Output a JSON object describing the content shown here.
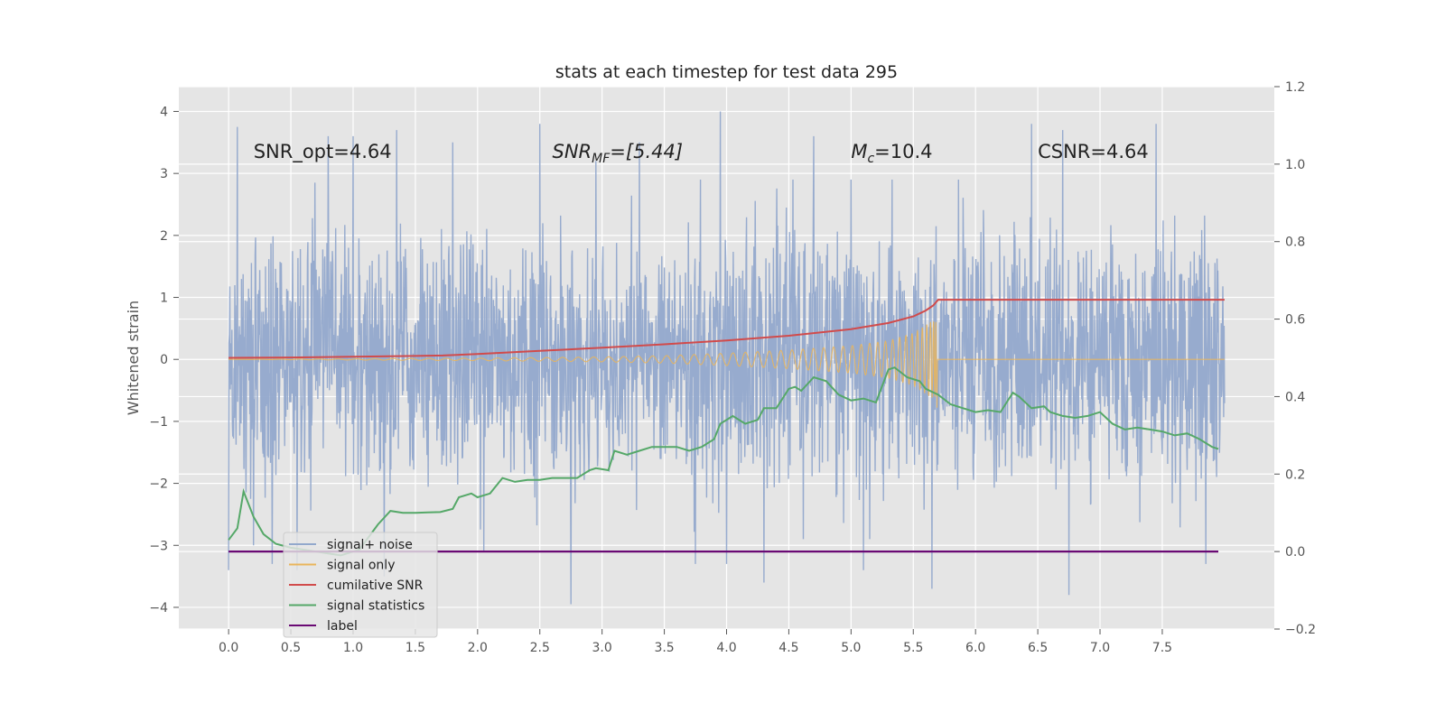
{
  "chart_data": {
    "type": "line",
    "title": "stats at each timestep for test data 295",
    "xlabel": "",
    "ylabel": "Whitened strain",
    "xlim": [
      -0.4,
      8.4
    ],
    "ylim": [
      -4.35,
      4.4
    ],
    "y2lim": [
      -0.2,
      1.2
    ],
    "x_ticks": [
      0.0,
      0.5,
      1.0,
      1.5,
      2.0,
      2.5,
      3.0,
      3.5,
      4.0,
      4.5,
      5.0,
      5.5,
      6.0,
      6.5,
      7.0,
      7.5
    ],
    "x_tick_labels": [
      "0.0",
      "0.5",
      "1.0",
      "1.5",
      "2.0",
      "2.5",
      "3.0",
      "3.5",
      "4.0",
      "4.5",
      "5.0",
      "5.5",
      "6.0",
      "6.5",
      "7.0",
      "7.5"
    ],
    "y_ticks": [
      -4,
      -3,
      -2,
      -1,
      0,
      1,
      2,
      3,
      4
    ],
    "y_tick_labels": [
      "−4",
      "−3",
      "−2",
      "−1",
      "0",
      "1",
      "2",
      "3",
      "4"
    ],
    "y2_ticks": [
      -0.2,
      0.0,
      0.2,
      0.4,
      0.6,
      0.8,
      1.0,
      1.2
    ],
    "y2_tick_labels": [
      "−0.2",
      "0.0",
      "0.2",
      "0.4",
      "0.6",
      "0.8",
      "1.0",
      "1.2"
    ],
    "grid": true,
    "legend_position": "lower-left",
    "annotations": [
      {
        "text": "SNR_opt=4.64",
        "x": 0.2,
        "y": 3.25
      },
      {
        "text_main": "SNR",
        "text_sub": "MF",
        "text_rest": "=[5.44]",
        "x": 2.6,
        "y": 3.25
      },
      {
        "text_main": "M",
        "text_sub": "c",
        "text_rest": "=10.4",
        "x": 5.0,
        "y": 3.25
      },
      {
        "text": "CSNR=4.64",
        "x": 6.5,
        "y": 3.25
      }
    ],
    "series": [
      {
        "name": "signal+ noise",
        "color": "#92a8cc",
        "axis": "left",
        "x_range": [
          0.0,
          8.0
        ],
        "typical_range": [
          -1.9,
          1.9
        ],
        "extremes_x": [
          0.0,
          0.07,
          0.2,
          0.35,
          0.55,
          0.8,
          1.0,
          1.25,
          1.35,
          1.8,
          2.05,
          2.5,
          2.75,
          2.95,
          3.3,
          3.75,
          3.95,
          4.0,
          4.3,
          4.7,
          5.1,
          5.65,
          6.45,
          6.7,
          6.75,
          7.45,
          7.85
        ],
        "extremes_y": [
          -3.4,
          3.75,
          -3.0,
          -3.3,
          -3.4,
          3.6,
          3.6,
          -3.5,
          3.7,
          3.5,
          -3.1,
          3.8,
          -3.95,
          3.2,
          3.5,
          -3.3,
          4.0,
          -3.3,
          -3.6,
          3.6,
          -3.4,
          -3.7,
          3.8,
          3.7,
          -3.8,
          3.8,
          -3.3
        ]
      },
      {
        "name": "signal only",
        "color": "#e9b55c",
        "axis": "left",
        "x_range": [
          0.0,
          5.69
        ],
        "envelope_x": [
          0.0,
          2.0,
          3.0,
          3.5,
          4.0,
          4.5,
          5.0,
          5.3,
          5.5,
          5.6,
          5.65,
          5.69
        ],
        "envelope_y": [
          0.0,
          0.02,
          0.04,
          0.06,
          0.1,
          0.15,
          0.22,
          0.3,
          0.42,
          0.55,
          0.62,
          0.6
        ]
      },
      {
        "name": "cumilative SNR",
        "color": "#d14b4b",
        "axis": "right",
        "x": [
          0.0,
          0.5,
          1.0,
          1.5,
          1.72,
          2.0,
          2.5,
          3.0,
          3.5,
          4.0,
          4.5,
          5.0,
          5.3,
          5.5,
          5.6,
          5.66,
          5.7,
          5.75,
          6.0,
          7.0,
          8.0
        ],
        "values": [
          0.5,
          0.501,
          0.503,
          0.505,
          0.506,
          0.51,
          0.518,
          0.526,
          0.535,
          0.545,
          0.557,
          0.574,
          0.59,
          0.607,
          0.622,
          0.635,
          0.65,
          0.65,
          0.65,
          0.65,
          0.65
        ]
      },
      {
        "name": "signal statistics",
        "color": "#55a868",
        "axis": "right",
        "x": [
          0.0,
          0.07,
          0.12,
          0.2,
          0.28,
          0.38,
          0.5,
          0.7,
          0.9,
          1.05,
          1.2,
          1.3,
          1.4,
          1.5,
          1.6,
          1.7,
          1.8,
          1.85,
          1.95,
          2.0,
          2.1,
          2.2,
          2.3,
          2.4,
          2.5,
          2.6,
          2.7,
          2.8,
          2.9,
          2.95,
          3.05,
          3.1,
          3.2,
          3.3,
          3.4,
          3.5,
          3.6,
          3.7,
          3.8,
          3.9,
          3.95,
          4.05,
          4.15,
          4.25,
          4.3,
          4.4,
          4.5,
          4.55,
          4.6,
          4.7,
          4.8,
          4.9,
          5.0,
          5.1,
          5.2,
          5.3,
          5.35,
          5.45,
          5.55,
          5.6,
          5.7,
          5.8,
          5.9,
          6.0,
          6.1,
          6.2,
          6.3,
          6.35,
          6.45,
          6.55,
          6.6,
          6.7,
          6.8,
          6.9,
          7.0,
          7.1,
          7.2,
          7.3,
          7.4,
          7.5,
          7.6,
          7.7,
          7.8,
          7.9,
          7.95
        ],
        "values": [
          0.03,
          0.06,
          0.155,
          0.09,
          0.045,
          0.02,
          0.01,
          0.0,
          -0.01,
          0.005,
          0.07,
          0.105,
          0.1,
          0.1,
          0.101,
          0.102,
          0.11,
          0.14,
          0.15,
          0.14,
          0.15,
          0.19,
          0.18,
          0.185,
          0.185,
          0.19,
          0.19,
          0.19,
          0.21,
          0.215,
          0.21,
          0.26,
          0.25,
          0.26,
          0.27,
          0.27,
          0.27,
          0.26,
          0.27,
          0.29,
          0.33,
          0.35,
          0.33,
          0.34,
          0.37,
          0.37,
          0.42,
          0.425,
          0.415,
          0.45,
          0.44,
          0.405,
          0.39,
          0.395,
          0.385,
          0.47,
          0.475,
          0.45,
          0.44,
          0.42,
          0.405,
          0.38,
          0.37,
          0.36,
          0.365,
          0.36,
          0.41,
          0.4,
          0.37,
          0.375,
          0.36,
          0.35,
          0.345,
          0.35,
          0.36,
          0.33,
          0.315,
          0.32,
          0.315,
          0.31,
          0.3,
          0.305,
          0.29,
          0.27,
          0.265
        ]
      },
      {
        "name": "label",
        "color": "#6a0a74",
        "axis": "right",
        "x": [
          0.0,
          7.95
        ],
        "values": [
          0.0,
          0.0
        ]
      }
    ]
  },
  "legend": {
    "items": [
      {
        "label": "signal+ noise",
        "color": "#92a8cc"
      },
      {
        "label": "signal only",
        "color": "#e9b55c"
      },
      {
        "label": "cumilative SNR",
        "color": "#d14b4b"
      },
      {
        "label": "signal statistics",
        "color": "#55a868"
      },
      {
        "label": "label",
        "color": "#6a0a74"
      }
    ]
  },
  "colors": {
    "background": "#ffffff",
    "plot_area": "#e5e5e5",
    "grid": "#ffffff"
  }
}
